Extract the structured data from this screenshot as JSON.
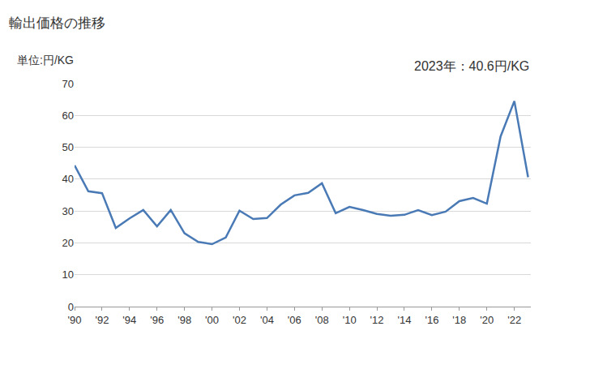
{
  "chart_data": {
    "type": "line",
    "title": "輸出価格の推移",
    "ylabel": "単位:円/KG",
    "annotations": [
      "2023年：40.6円/KG"
    ],
    "x": [
      1990,
      1991,
      1992,
      1993,
      1994,
      1995,
      1996,
      1997,
      1998,
      1999,
      2000,
      2001,
      2002,
      2003,
      2004,
      2005,
      2006,
      2007,
      2008,
      2009,
      2010,
      2011,
      2012,
      2013,
      2014,
      2015,
      2016,
      2017,
      2018,
      2019,
      2020,
      2021,
      2022,
      2023
    ],
    "values": [
      44.3,
      36.2,
      35.6,
      24.7,
      27.7,
      30.3,
      25.2,
      30.3,
      23.0,
      20.3,
      19.6,
      21.7,
      30.1,
      27.5,
      27.8,
      32.0,
      34.9,
      35.7,
      38.7,
      29.3,
      31.3,
      30.3,
      29.1,
      28.5,
      28.8,
      30.3,
      28.7,
      29.8,
      33.1,
      34.1,
      32.3,
      53.4,
      64.5,
      40.6
    ],
    "color": "#4a7ab5",
    "xlim": [
      1990,
      2023.2
    ],
    "xticks": [
      {
        "value": 1990,
        "label": "'90"
      },
      {
        "value": 1992,
        "label": "'92"
      },
      {
        "value": 1994,
        "label": "'94"
      },
      {
        "value": 1996,
        "label": "'96"
      },
      {
        "value": 1998,
        "label": "'98"
      },
      {
        "value": 2000,
        "label": "'00"
      },
      {
        "value": 2002,
        "label": "'02"
      },
      {
        "value": 2004,
        "label": "'04"
      },
      {
        "value": 2006,
        "label": "'06"
      },
      {
        "value": 2008,
        "label": "'08"
      },
      {
        "value": 2010,
        "label": "'10"
      },
      {
        "value": 2012,
        "label": "'12"
      },
      {
        "value": 2014,
        "label": "'14"
      },
      {
        "value": 2016,
        "label": "'16"
      },
      {
        "value": 2018,
        "label": "'18"
      },
      {
        "value": 2020,
        "label": "'20"
      },
      {
        "value": 2022,
        "label": "'22"
      }
    ],
    "ylim": [
      0,
      70
    ],
    "yticks": [
      0,
      10,
      20,
      30,
      40,
      50,
      60,
      70
    ],
    "grid": true
  }
}
